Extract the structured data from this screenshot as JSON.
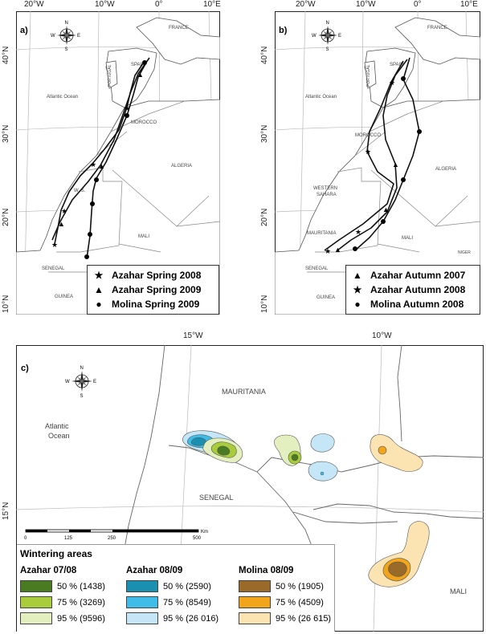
{
  "panel_a": {
    "letter": "a)",
    "x_ticks": [
      "20°W",
      "10°W",
      "0°",
      "10°E"
    ],
    "y_ticks": [
      "40°N",
      "30°N",
      "20°N",
      "10°N"
    ],
    "labels": {
      "france": "FRANCE",
      "spain": "SPAIN",
      "portugal": "PORTUGAL",
      "ocean": "Atlantic Ocean",
      "morocco": "MOROCCO",
      "algeria": "ALGERIA",
      "ws": "W. S.",
      "mali": "MALI",
      "senegal": "SENEGAL",
      "guinea": "GUINEA"
    },
    "legend": [
      {
        "symbol": "★",
        "label": "Azahar Spring 2008"
      },
      {
        "symbol": "▲",
        "label": "Azahar Spring 2009"
      },
      {
        "symbol": "●",
        "label": "Molina Spring 2009"
      }
    ]
  },
  "panel_b": {
    "letter": "b)",
    "x_ticks": [
      "20°W",
      "10°W",
      "0°",
      "10°E"
    ],
    "y_ticks": [
      "40°N",
      "30°N",
      "20°N",
      "10°N"
    ],
    "labels": {
      "france": "FRANCE",
      "spain": "SPAIN",
      "portugal": "PORTUGAL",
      "ocean": "Atlantic Ocean",
      "morocco": "MOROCCO",
      "algeria": "ALGERIA",
      "western": "WESTERN",
      "sahara": "SAHARA",
      "mauritania": "MAURITANIA",
      "mali": "MALI",
      "senegal": "SENEGAL",
      "guinea": "GUINEA",
      "niger": "NIGER"
    },
    "legend": [
      {
        "symbol": "▲",
        "label": "Azahar Autumn 2007"
      },
      {
        "symbol": "★",
        "label": "Azahar Autumn 2008"
      },
      {
        "symbol": "●",
        "label": "Molina Autumn 2008"
      }
    ]
  },
  "panel_c": {
    "letter": "c)",
    "x_ticks": [
      "15°W",
      "10°W"
    ],
    "y_tick": "15°N",
    "labels": {
      "mauritania": "MAURITANIA",
      "atlantic": "Atlantic",
      "ocean": "Ocean",
      "senegal": "SENEGAL",
      "mali": "MALI"
    },
    "scale": {
      "unit": "Km",
      "ticks": [
        "0",
        "125",
        "250",
        "500"
      ]
    },
    "wintering": {
      "title": "Wintering areas",
      "columns": [
        {
          "title": "Azahar 07/08",
          "items": [
            {
              "label": "50 % (1438)",
              "color": "#4a7a22"
            },
            {
              "label": "75 % (3269)",
              "color": "#a8cc3c"
            },
            {
              "label": "95 % (9596)",
              "color": "#e4efc0"
            }
          ]
        },
        {
          "title": "Azahar 08/09",
          "items": [
            {
              "label": "50 % (2590)",
              "color": "#1a8fb0"
            },
            {
              "label": "75 % (8549)",
              "color": "#3fbde8"
            },
            {
              "label": "95 % (26 016)",
              "color": "#c5e6f6"
            }
          ]
        },
        {
          "title": "Molina 08/09",
          "items": [
            {
              "label": "50 % (1905)",
              "color": "#9a6a2a"
            },
            {
              "label": "75 % (4509)",
              "color": "#f2a51a"
            },
            {
              "label": "95 % (26 615)",
              "color": "#fbe3b2"
            }
          ]
        }
      ]
    }
  },
  "compass": {
    "n": "N",
    "s": "S",
    "e": "E",
    "w": "W"
  }
}
